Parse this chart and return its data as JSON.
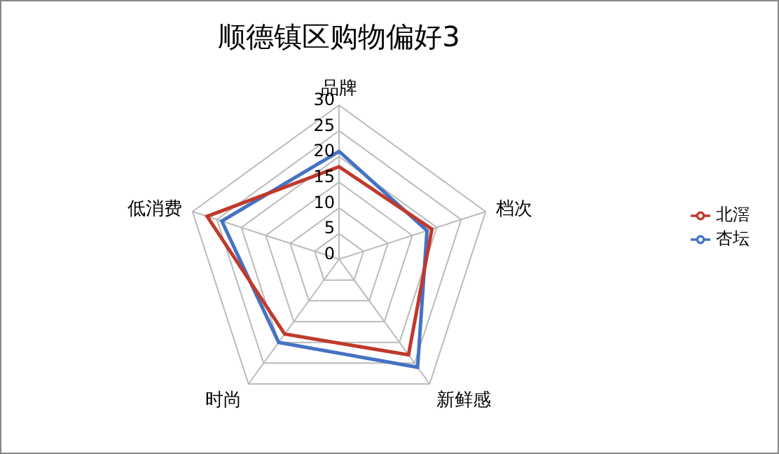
{
  "chart_data": {
    "type": "radar",
    "title": "顺德镇区购物偏好3",
    "categories": [
      "品牌",
      "档次",
      "新鲜感",
      "时尚",
      "低消费"
    ],
    "series": [
      {
        "name": "杏坛",
        "color": "#4472c4",
        "values": [
          21,
          18,
          26,
          20,
          24
        ]
      },
      {
        "name": "北滘",
        "color": "#c0392b",
        "values": [
          18,
          19,
          23,
          18,
          27
        ]
      }
    ],
    "ylim": [
      0,
      30
    ],
    "yticks": [
      0,
      5,
      10,
      15,
      20,
      25,
      30
    ],
    "grid": true,
    "legend": "right"
  }
}
